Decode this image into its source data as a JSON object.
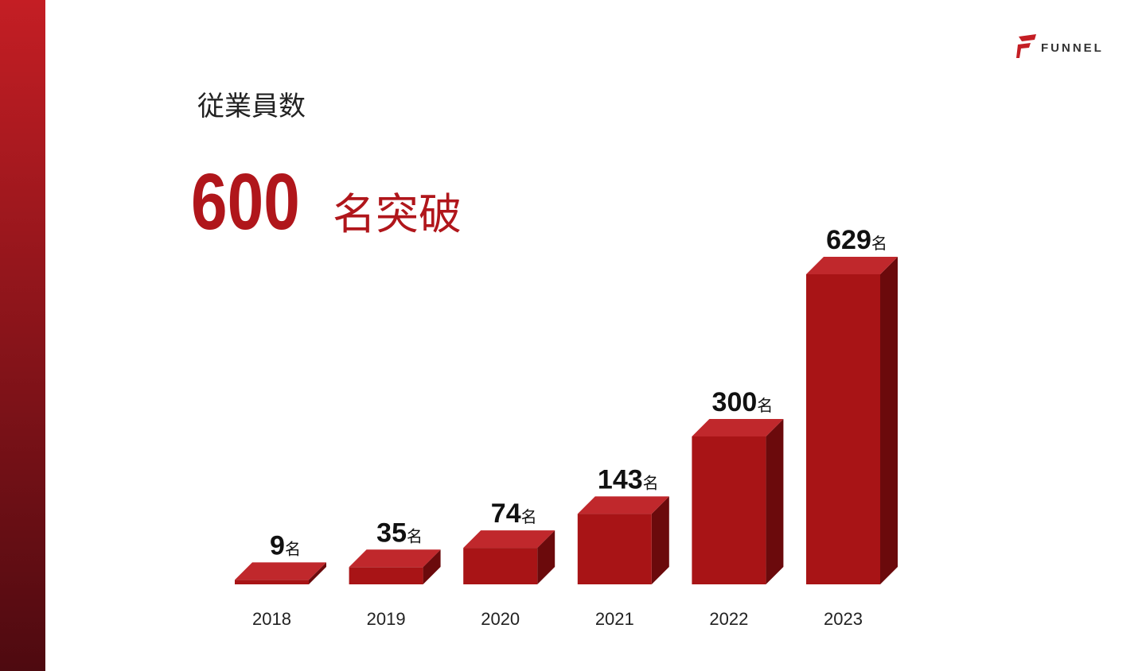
{
  "logo": "FUNNEL",
  "chart_data": {
    "type": "bar3d",
    "title": "従業員数",
    "headline_number": "600",
    "headline_text": "名突破",
    "categories": [
      "2018",
      "2019",
      "2020",
      "2021",
      "2022",
      "2023"
    ],
    "values": [
      9,
      35,
      74,
      143,
      300,
      629
    ],
    "value_labels": [
      "9名",
      "35名",
      "74名",
      "143名",
      "300名",
      "629名"
    ],
    "color": "#a81416"
  }
}
